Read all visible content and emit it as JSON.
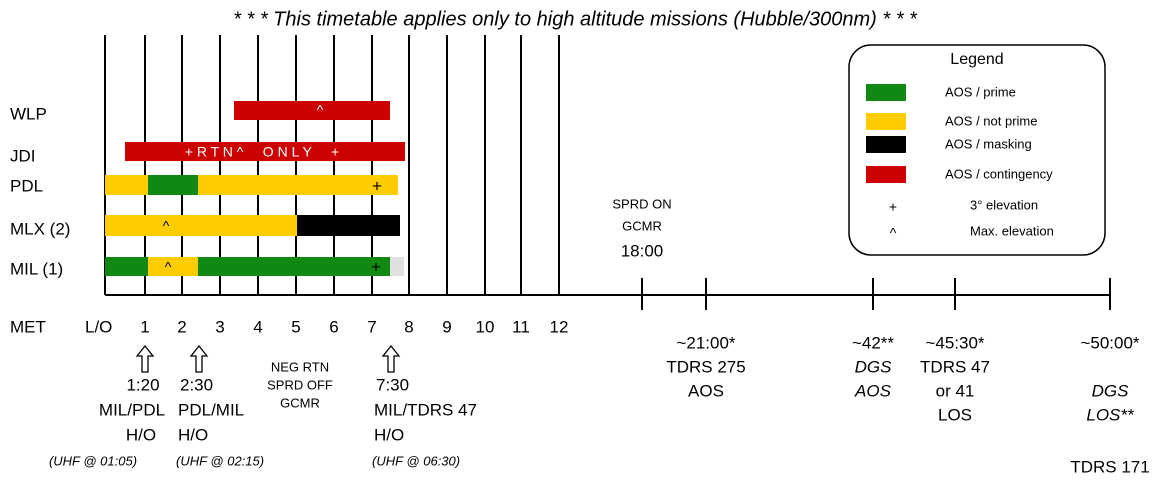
{
  "title": "* * * This timetable applies only to high altitude missions (Hubble/300nm) * * *",
  "rows": [
    "WLP",
    "JDI",
    "PDL",
    "MLX (2)",
    "MIL (1)"
  ],
  "bar_marks": {
    "wlp": "^",
    "jdi": "+ R T N ^     O N L Y     +",
    "pdl": "+",
    "mlx": "^",
    "mil_max": "^",
    "mil_elev": "+"
  },
  "axis": {
    "label": "MET",
    "start": "L/O",
    "ticks": [
      "1",
      "2",
      "3",
      "4",
      "5",
      "6",
      "7",
      "8",
      "9",
      "10",
      "11",
      "12"
    ]
  },
  "legend": {
    "title": "Legend",
    "entries": [
      "AOS / prime",
      "AOS / not prime",
      "AOS / masking",
      "AOS / contingency",
      "3° elevation",
      "Max. elevation"
    ],
    "symbols": [
      "+",
      "^"
    ]
  },
  "sprd_on": [
    "SPRD ON",
    "GCMR",
    "18:00"
  ],
  "handovers": [
    {
      "time": "1:20",
      "text": "MIL/PDL",
      "ho": "H/O",
      "uhf": "(UHF @ 01:05)"
    },
    {
      "time": "2:30",
      "text": "PDL/MIL",
      "ho": "H/O",
      "uhf": "(UHF @ 02:15)"
    },
    {
      "time": "7:30",
      "text": "MIL/TDRS 47",
      "ho": "H/O",
      "uhf": "(UHF @ 06:30)"
    }
  ],
  "neg_rtn": [
    "NEG RTN",
    "SPRD OFF",
    "GCMR"
  ],
  "events": [
    {
      "time": "~21:00*",
      "lines": [
        "TDRS 275",
        "AOS"
      ]
    },
    {
      "time": "~42**",
      "lines": [
        "DGS",
        "AOS"
      ]
    },
    {
      "time": "~45:30*",
      "lines": [
        "TDRS 47",
        "or 41",
        "LOS"
      ]
    },
    {
      "time": "~50:00*",
      "lines": [
        "DGS",
        "LOS**"
      ]
    }
  ],
  "footer": "TDRS 171"
}
